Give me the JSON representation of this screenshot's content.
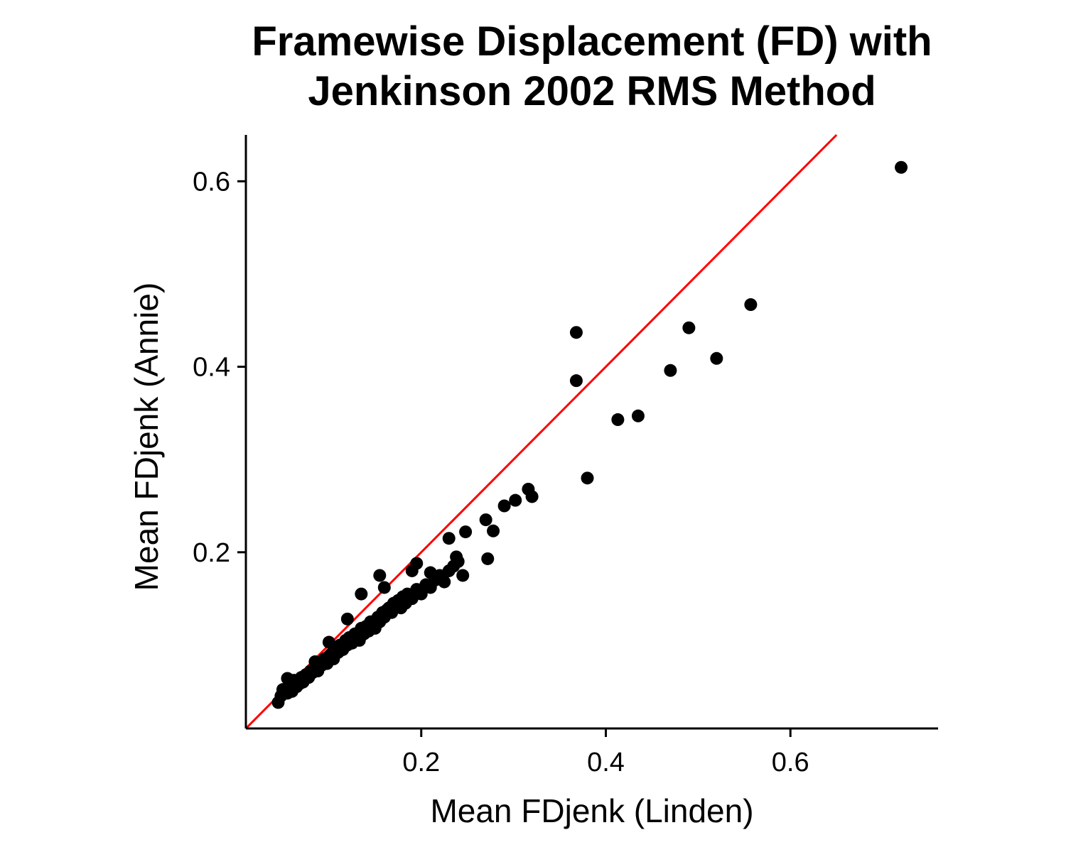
{
  "chart_data": {
    "type": "scatter",
    "title_lines": [
      "Framewise Displacement (FD) with",
      "Jenkinson 2002 RMS Method"
    ],
    "xlabel": "Mean FDjenk (Linden)",
    "ylabel": "Mean FDjenk (Annie)",
    "xlim": [
      0.01,
      0.76
    ],
    "ylim": [
      0.01,
      0.65
    ],
    "x_ticks": [
      0.2,
      0.4,
      0.6
    ],
    "y_ticks": [
      0.2,
      0.4,
      0.6
    ],
    "x_tick_labels": [
      "0.2",
      "0.4",
      "0.6"
    ],
    "y_tick_labels": [
      "0.2",
      "0.4",
      "0.6"
    ],
    "grid": false,
    "point_color": "#000000",
    "reference_line": {
      "type": "identity",
      "slope": 1,
      "intercept": 0,
      "color": "#ff0000"
    },
    "points": [
      {
        "x": 0.045,
        "y": 0.038
      },
      {
        "x": 0.048,
        "y": 0.045
      },
      {
        "x": 0.05,
        "y": 0.052
      },
      {
        "x": 0.055,
        "y": 0.048
      },
      {
        "x": 0.058,
        "y": 0.056
      },
      {
        "x": 0.06,
        "y": 0.05
      },
      {
        "x": 0.062,
        "y": 0.062
      },
      {
        "x": 0.065,
        "y": 0.055
      },
      {
        "x": 0.068,
        "y": 0.058
      },
      {
        "x": 0.07,
        "y": 0.065
      },
      {
        "x": 0.072,
        "y": 0.06
      },
      {
        "x": 0.075,
        "y": 0.068
      },
      {
        "x": 0.078,
        "y": 0.065
      },
      {
        "x": 0.08,
        "y": 0.072
      },
      {
        "x": 0.082,
        "y": 0.07
      },
      {
        "x": 0.085,
        "y": 0.075
      },
      {
        "x": 0.088,
        "y": 0.072
      },
      {
        "x": 0.09,
        "y": 0.08
      },
      {
        "x": 0.092,
        "y": 0.078
      },
      {
        "x": 0.095,
        "y": 0.085
      },
      {
        "x": 0.098,
        "y": 0.08
      },
      {
        "x": 0.1,
        "y": 0.088
      },
      {
        "x": 0.102,
        "y": 0.09
      },
      {
        "x": 0.105,
        "y": 0.085
      },
      {
        "x": 0.108,
        "y": 0.095
      },
      {
        "x": 0.11,
        "y": 0.092
      },
      {
        "x": 0.112,
        "y": 0.1
      },
      {
        "x": 0.115,
        "y": 0.095
      },
      {
        "x": 0.118,
        "y": 0.105
      },
      {
        "x": 0.12,
        "y": 0.1
      },
      {
        "x": 0.122,
        "y": 0.108
      },
      {
        "x": 0.125,
        "y": 0.102
      },
      {
        "x": 0.128,
        "y": 0.112
      },
      {
        "x": 0.13,
        "y": 0.11
      },
      {
        "x": 0.133,
        "y": 0.105
      },
      {
        "x": 0.135,
        "y": 0.118
      },
      {
        "x": 0.138,
        "y": 0.112
      },
      {
        "x": 0.14,
        "y": 0.12
      },
      {
        "x": 0.143,
        "y": 0.115
      },
      {
        "x": 0.145,
        "y": 0.125
      },
      {
        "x": 0.148,
        "y": 0.122
      },
      {
        "x": 0.15,
        "y": 0.118
      },
      {
        "x": 0.153,
        "y": 0.13
      },
      {
        "x": 0.155,
        "y": 0.125
      },
      {
        "x": 0.158,
        "y": 0.135
      },
      {
        "x": 0.16,
        "y": 0.13
      },
      {
        "x": 0.163,
        "y": 0.138
      },
      {
        "x": 0.165,
        "y": 0.14
      },
      {
        "x": 0.168,
        "y": 0.135
      },
      {
        "x": 0.17,
        "y": 0.145
      },
      {
        "x": 0.173,
        "y": 0.142
      },
      {
        "x": 0.175,
        "y": 0.148
      },
      {
        "x": 0.178,
        "y": 0.14
      },
      {
        "x": 0.18,
        "y": 0.152
      },
      {
        "x": 0.183,
        "y": 0.145
      },
      {
        "x": 0.185,
        "y": 0.155
      },
      {
        "x": 0.19,
        "y": 0.15
      },
      {
        "x": 0.195,
        "y": 0.16
      },
      {
        "x": 0.2,
        "y": 0.155
      },
      {
        "x": 0.205,
        "y": 0.165
      },
      {
        "x": 0.21,
        "y": 0.162
      },
      {
        "x": 0.215,
        "y": 0.17
      },
      {
        "x": 0.22,
        "y": 0.175
      },
      {
        "x": 0.225,
        "y": 0.168
      },
      {
        "x": 0.23,
        "y": 0.18
      },
      {
        "x": 0.235,
        "y": 0.185
      },
      {
        "x": 0.24,
        "y": 0.19
      },
      {
        "x": 0.245,
        "y": 0.175
      },
      {
        "x": 0.055,
        "y": 0.064
      },
      {
        "x": 0.085,
        "y": 0.082
      },
      {
        "x": 0.1,
        "y": 0.103
      },
      {
        "x": 0.12,
        "y": 0.128
      },
      {
        "x": 0.135,
        "y": 0.155
      },
      {
        "x": 0.155,
        "y": 0.175
      },
      {
        "x": 0.16,
        "y": 0.162
      },
      {
        "x": 0.19,
        "y": 0.18
      },
      {
        "x": 0.195,
        "y": 0.188
      },
      {
        "x": 0.21,
        "y": 0.178
      },
      {
        "x": 0.23,
        "y": 0.215
      },
      {
        "x": 0.238,
        "y": 0.195
      },
      {
        "x": 0.248,
        "y": 0.222
      },
      {
        "x": 0.27,
        "y": 0.235
      },
      {
        "x": 0.272,
        "y": 0.193
      },
      {
        "x": 0.278,
        "y": 0.223
      },
      {
        "x": 0.29,
        "y": 0.25
      },
      {
        "x": 0.302,
        "y": 0.256
      },
      {
        "x": 0.316,
        "y": 0.268
      },
      {
        "x": 0.32,
        "y": 0.26
      },
      {
        "x": 0.368,
        "y": 0.437
      },
      {
        "x": 0.368,
        "y": 0.385
      },
      {
        "x": 0.38,
        "y": 0.28
      },
      {
        "x": 0.413,
        "y": 0.343
      },
      {
        "x": 0.435,
        "y": 0.347
      },
      {
        "x": 0.47,
        "y": 0.396
      },
      {
        "x": 0.49,
        "y": 0.442
      },
      {
        "x": 0.52,
        "y": 0.409
      },
      {
        "x": 0.557,
        "y": 0.467
      },
      {
        "x": 0.72,
        "y": 0.615
      }
    ]
  }
}
